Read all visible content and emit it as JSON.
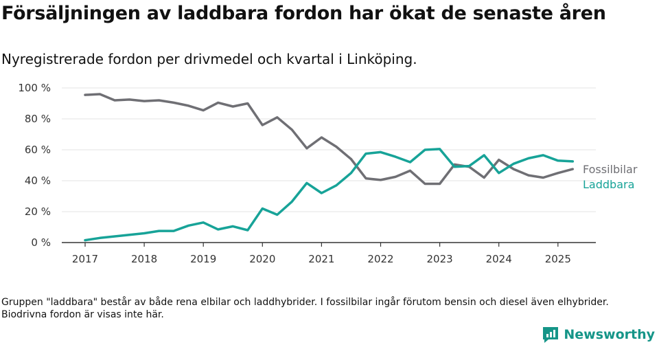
{
  "header": {
    "title": "Försäljningen av laddbara fordon har ökat de senaste åren",
    "subtitle": "Nyregistrerade fordon per drivmedel och kvartal i Linköping."
  },
  "footer": {
    "note": "Gruppen \"laddbara\" består av både rena elbilar och laddhybrider. I fossilbilar ingår förutom bensin och diesel även elhybrider. Biodrivna fordon är visas inte här.",
    "brand": "Newsworthy"
  },
  "colors": {
    "fossil": "#6f6f74",
    "laddbara": "#17a398",
    "brand": "#159588"
  },
  "chart_data": {
    "type": "line",
    "x_unit": "quarter",
    "x": [
      "2017 Q1",
      "2017 Q2",
      "2017 Q3",
      "2017 Q4",
      "2018 Q1",
      "2018 Q2",
      "2018 Q3",
      "2018 Q4",
      "2019 Q1",
      "2019 Q2",
      "2019 Q3",
      "2019 Q4",
      "2020 Q1",
      "2020 Q2",
      "2020 Q3",
      "2020 Q4",
      "2021 Q1",
      "2021 Q2",
      "2021 Q3",
      "2021 Q4",
      "2022 Q1",
      "2022 Q2",
      "2022 Q3",
      "2022 Q4",
      "2023 Q1",
      "2023 Q2",
      "2023 Q3",
      "2023 Q4",
      "2024 Q1",
      "2024 Q2",
      "2024 Q3",
      "2024 Q4",
      "2025 Q1",
      "2025 Q2"
    ],
    "series": [
      {
        "name": "Fossilbilar",
        "color": "#6f6f74",
        "values": [
          95.5,
          96,
          92,
          92.5,
          91.5,
          92,
          90.5,
          88.5,
          85.5,
          90.5,
          88,
          90,
          76,
          81,
          73,
          61,
          68,
          62,
          54,
          41.5,
          40.5,
          42.5,
          46.5,
          38,
          38,
          50.5,
          49,
          42,
          53.5,
          47.5,
          43.5,
          42,
          45,
          47.5
        ]
      },
      {
        "name": "Laddbara",
        "color": "#17a398",
        "values": [
          1.5,
          3,
          4,
          5,
          6,
          7.5,
          7.5,
          11,
          13,
          8.5,
          10.5,
          8,
          22,
          18,
          26.5,
          38.5,
          32,
          37,
          45,
          57.5,
          58.5,
          55.5,
          52,
          60,
          60.5,
          49,
          49.5,
          56.5,
          45,
          51,
          54.5,
          56.5,
          53,
          52.5
        ]
      }
    ],
    "xticks": [
      "2017",
      "2018",
      "2019",
      "2020",
      "2021",
      "2022",
      "2023",
      "2024",
      "2025"
    ],
    "yticks": [
      "0 %",
      "20 %",
      "40 %",
      "60 %",
      "80 %",
      "100 %"
    ],
    "ylim": [
      0,
      100
    ],
    "grid": "horizontal",
    "legend": "right, line labels"
  }
}
